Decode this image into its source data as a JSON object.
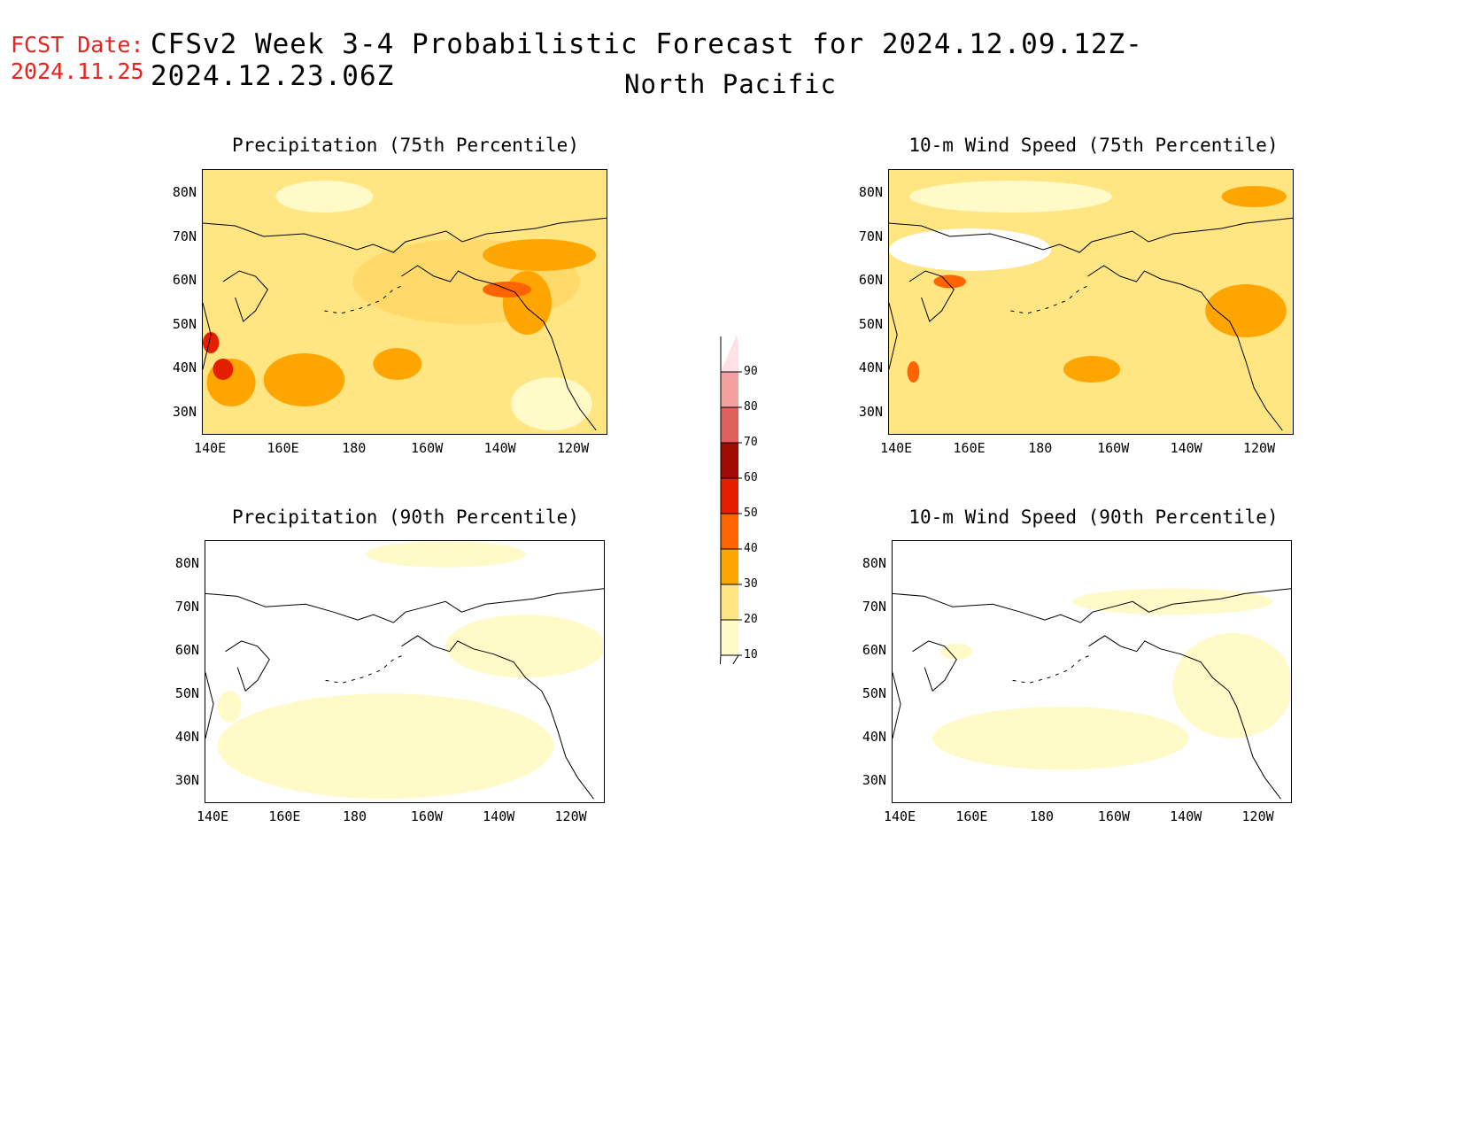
{
  "header": {
    "fcst_label": "FCST Date:",
    "fcst_date": "2024.11.25",
    "title": "CFSv2 Week 3-4 Probabilistic Forecast for 2024.12.09.12Z-2024.12.23.06Z",
    "subtitle": "North Pacific"
  },
  "axes": {
    "lat_ticks": [
      "80N",
      "70N",
      "60N",
      "50N",
      "40N",
      "30N"
    ],
    "lon_ticks": [
      "140E",
      "160E",
      "180",
      "160W",
      "140W",
      "120W"
    ]
  },
  "panels": [
    {
      "title": "Precipitation (75th Percentile)",
      "variable": "precip",
      "percentile": 75
    },
    {
      "title": "10-m Wind Speed (75th Percentile)",
      "variable": "wind",
      "percentile": 75
    },
    {
      "title": "Precipitation (90th Percentile)",
      "variable": "precip",
      "percentile": 90
    },
    {
      "title": "10-m Wind Speed (90th Percentile)",
      "variable": "wind",
      "percentile": 90
    }
  ],
  "colorbar": {
    "labels": [
      "10",
      "20",
      "30",
      "40",
      "50",
      "60",
      "70",
      "80",
      "90"
    ],
    "colors": [
      "#fffac8",
      "#ffe682",
      "#ffa500",
      "#ff6400",
      "#e61e00",
      "#a00a00",
      "#e06060",
      "#f4a0a0",
      "#ffe0e6"
    ]
  }
}
